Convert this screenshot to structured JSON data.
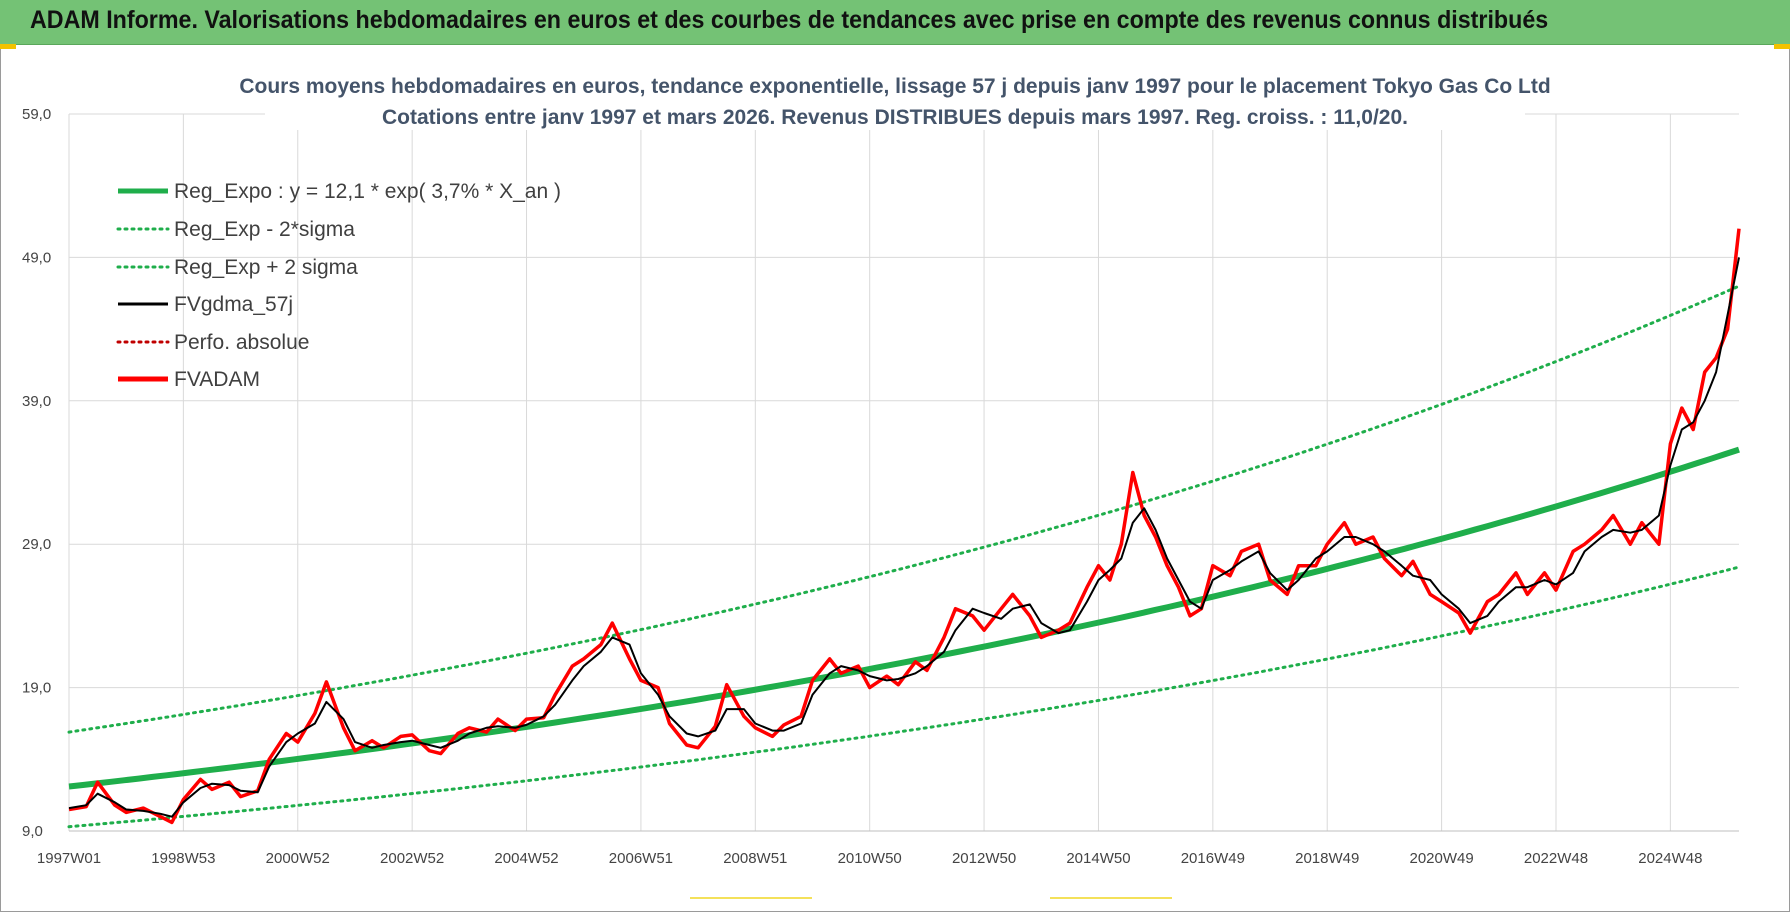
{
  "header": {
    "banner_title": "ADAM Informe. Valorisations hebdomadaires en euros et des courbes de tendances avec prise en compte des revenus connus distribués"
  },
  "chart_data": {
    "type": "line",
    "title": "Cours moyens hebdomadaires en euros, tendance exponentielle, lissage 57 j depuis janv 1997 pour le placement Tokyo Gas Co Ltd",
    "subtitle": "Cotations entre janv 1997 et mars 2026. Revenus DISTRIBUES depuis mars 1997. Reg. croiss. : 11,0/20.",
    "xlabel": "",
    "ylabel": "",
    "x_range": [
      1997.0,
      2026.2
    ],
    "ylim": [
      9.0,
      59.0
    ],
    "y_ticks": [
      "9,0",
      "19,0",
      "29,0",
      "39,0",
      "49,0",
      "59,0"
    ],
    "y_tick_values": [
      9,
      19,
      29,
      39,
      49,
      59
    ],
    "x_ticks": [
      "1997W01",
      "1998W53",
      "2000W52",
      "2002W52",
      "2004W52",
      "2006W51",
      "2008W51",
      "2010W50",
      "2012W50",
      "2014W50",
      "2016W49",
      "2018W49",
      "2020W49",
      "2022W48",
      "2024W48"
    ],
    "x_tick_values": [
      1997.0,
      1999.0,
      2001.0,
      2003.0,
      2005.0,
      2007.0,
      2009.0,
      2011.0,
      2013.0,
      2015.0,
      2017.0,
      2019.0,
      2021.0,
      2023.0,
      2025.0
    ],
    "grid": true,
    "legend_position": "top-left",
    "colors": {
      "green": "#1fae4b",
      "black": "#000000",
      "red": "#ff0000",
      "dark_red": "#c00000",
      "grid": "#d9d9d9"
    },
    "series": [
      {
        "name": "Reg_Expo : y = 12,1 * exp( 3,7% *  X_an )",
        "style": "thick-solid",
        "color": "#1fae4b",
        "x": [
          1997.0,
          2026.2
        ],
        "values": [
          12.1,
          35.6
        ]
      },
      {
        "name": "Reg_Exp - 2*sigma",
        "style": "dotted",
        "color": "#1fae4b",
        "x": [
          1997.0,
          2026.2
        ],
        "values": [
          9.3,
          27.4
        ]
      },
      {
        "name": "Reg_Exp + 2 sigma",
        "style": "dotted",
        "color": "#1fae4b",
        "x": [
          1997.0,
          2026.2
        ],
        "values": [
          15.9,
          47.0
        ]
      },
      {
        "name": "FVgdma_57j",
        "style": "thin-solid",
        "color": "#000000",
        "x": [
          1997.0,
          1997.3,
          1997.5,
          1997.8,
          1998.0,
          1998.3,
          1998.6,
          1998.8,
          1999.0,
          1999.3,
          1999.5,
          1999.8,
          2000.0,
          2000.3,
          2000.5,
          2000.8,
          2001.0,
          2001.3,
          2001.5,
          2001.8,
          2002.0,
          2002.3,
          2002.5,
          2002.8,
          2003.0,
          2003.3,
          2003.5,
          2003.8,
          2004.0,
          2004.3,
          2004.5,
          2004.8,
          2005.0,
          2005.3,
          2005.5,
          2005.8,
          2006.0,
          2006.3,
          2006.5,
          2006.8,
          2007.0,
          2007.3,
          2007.5,
          2007.8,
          2008.0,
          2008.3,
          2008.5,
          2008.8,
          2009.0,
          2009.3,
          2009.5,
          2009.8,
          2010.0,
          2010.3,
          2010.5,
          2010.8,
          2011.0,
          2011.3,
          2011.5,
          2011.8,
          2012.0,
          2012.3,
          2012.5,
          2012.8,
          2013.0,
          2013.3,
          2013.5,
          2013.8,
          2014.0,
          2014.3,
          2014.5,
          2014.8,
          2015.0,
          2015.2,
          2015.4,
          2015.6,
          2015.8,
          2016.0,
          2016.2,
          2016.4,
          2016.6,
          2016.8,
          2017.0,
          2017.3,
          2017.5,
          2017.8,
          2018.0,
          2018.3,
          2018.5,
          2018.8,
          2019.0,
          2019.3,
          2019.5,
          2019.8,
          2020.0,
          2020.3,
          2020.5,
          2020.8,
          2021.0,
          2021.3,
          2021.5,
          2021.8,
          2022.0,
          2022.3,
          2022.5,
          2022.8,
          2023.0,
          2023.3,
          2023.5,
          2023.8,
          2024.0,
          2024.3,
          2024.5,
          2024.8,
          2025.0,
          2025.2,
          2025.4,
          2025.6,
          2025.8,
          2026.0,
          2026.2
        ],
        "values": [
          10.6,
          10.8,
          11.6,
          11.0,
          10.5,
          10.4,
          10.2,
          10.0,
          11.0,
          12.0,
          12.3,
          12.2,
          11.8,
          11.7,
          13.5,
          15.2,
          15.8,
          16.5,
          18.0,
          16.8,
          15.2,
          14.8,
          15.0,
          15.2,
          15.3,
          15.0,
          14.8,
          15.3,
          15.8,
          16.2,
          16.3,
          16.2,
          16.4,
          17.0,
          17.8,
          19.5,
          20.5,
          21.5,
          22.5,
          22.0,
          20.0,
          18.5,
          17.0,
          15.8,
          15.6,
          16.0,
          17.5,
          17.5,
          16.5,
          16.0,
          16.0,
          16.5,
          18.5,
          20.0,
          20.5,
          20.2,
          19.8,
          19.5,
          19.6,
          20.0,
          20.5,
          21.5,
          23.0,
          24.5,
          24.2,
          23.8,
          24.5,
          24.8,
          23.5,
          22.8,
          23.0,
          25.0,
          26.5,
          27.2,
          28.0,
          30.5,
          31.5,
          30.0,
          28.0,
          26.5,
          25.0,
          24.5,
          26.5,
          27.2,
          27.8,
          28.5,
          27.0,
          25.8,
          26.5,
          28.0,
          28.5,
          29.5,
          29.5,
          29.0,
          28.5,
          27.5,
          26.8,
          26.5,
          25.5,
          24.5,
          23.5,
          24.0,
          25.0,
          26.0,
          26.0,
          26.5,
          26.2,
          27.0,
          28.5,
          29.5,
          30.0,
          29.8,
          30.0,
          31.0,
          34.5,
          37.0,
          37.5,
          39.0,
          41.0,
          45.0,
          49.0
        ]
      },
      {
        "name": "Perfo. absolue",
        "style": "dotted",
        "color": "#c00000",
        "x": [],
        "values": []
      },
      {
        "name": "FVADAM",
        "style": "thick-solid",
        "color": "#ff0000",
        "x": [
          1997.0,
          1997.3,
          1997.5,
          1997.8,
          1998.0,
          1998.3,
          1998.6,
          1998.8,
          1999.0,
          1999.3,
          1999.5,
          1999.8,
          2000.0,
          2000.3,
          2000.5,
          2000.8,
          2001.0,
          2001.3,
          2001.5,
          2001.8,
          2002.0,
          2002.3,
          2002.5,
          2002.8,
          2003.0,
          2003.3,
          2003.5,
          2003.8,
          2004.0,
          2004.3,
          2004.5,
          2004.8,
          2005.0,
          2005.3,
          2005.5,
          2005.8,
          2006.0,
          2006.3,
          2006.5,
          2006.8,
          2007.0,
          2007.3,
          2007.5,
          2007.8,
          2008.0,
          2008.3,
          2008.5,
          2008.8,
          2009.0,
          2009.3,
          2009.5,
          2009.8,
          2010.0,
          2010.3,
          2010.5,
          2010.8,
          2011.0,
          2011.3,
          2011.5,
          2011.8,
          2012.0,
          2012.3,
          2012.5,
          2012.8,
          2013.0,
          2013.3,
          2013.5,
          2013.8,
          2014.0,
          2014.3,
          2014.5,
          2014.8,
          2015.0,
          2015.2,
          2015.4,
          2015.6,
          2015.8,
          2016.0,
          2016.2,
          2016.4,
          2016.6,
          2016.8,
          2017.0,
          2017.3,
          2017.5,
          2017.8,
          2018.0,
          2018.3,
          2018.5,
          2018.8,
          2019.0,
          2019.3,
          2019.5,
          2019.8,
          2020.0,
          2020.3,
          2020.5,
          2020.8,
          2021.0,
          2021.3,
          2021.5,
          2021.8,
          2022.0,
          2022.3,
          2022.5,
          2022.8,
          2023.0,
          2023.3,
          2023.5,
          2023.8,
          2024.0,
          2024.3,
          2024.5,
          2024.8,
          2025.0,
          2025.2,
          2025.4,
          2025.6,
          2025.8,
          2026.0,
          2026.2
        ],
        "values": [
          10.5,
          10.7,
          12.4,
          10.8,
          10.3,
          10.6,
          10.0,
          9.6,
          11.2,
          12.6,
          11.9,
          12.4,
          11.4,
          11.8,
          14.0,
          15.8,
          15.2,
          17.2,
          19.4,
          16.2,
          14.6,
          15.3,
          14.8,
          15.6,
          15.7,
          14.6,
          14.4,
          15.8,
          16.2,
          15.9,
          16.8,
          16.0,
          16.8,
          16.9,
          18.5,
          20.5,
          21.0,
          22.0,
          23.5,
          21.0,
          19.5,
          19.0,
          16.5,
          15.0,
          14.8,
          16.3,
          19.2,
          17.0,
          16.2,
          15.6,
          16.4,
          17.0,
          19.5,
          21.0,
          20.0,
          20.5,
          19.0,
          19.8,
          19.2,
          20.8,
          20.2,
          22.5,
          24.5,
          24.0,
          23.0,
          24.5,
          25.5,
          24.0,
          22.5,
          23.0,
          23.5,
          26.0,
          27.5,
          26.5,
          29.0,
          34.0,
          31.0,
          29.5,
          27.5,
          26.0,
          24.0,
          24.5,
          27.5,
          26.8,
          28.5,
          29.0,
          26.5,
          25.5,
          27.5,
          27.5,
          29.0,
          30.5,
          29.0,
          29.5,
          28.0,
          26.8,
          27.8,
          25.5,
          25.0,
          24.2,
          22.8,
          25.0,
          25.5,
          27.0,
          25.5,
          27.0,
          25.8,
          28.5,
          29.0,
          30.0,
          31.0,
          29.0,
          30.5,
          29.0,
          36.0,
          38.5,
          37.0,
          41.0,
          42.0,
          44.0,
          51.0
        ]
      }
    ]
  }
}
